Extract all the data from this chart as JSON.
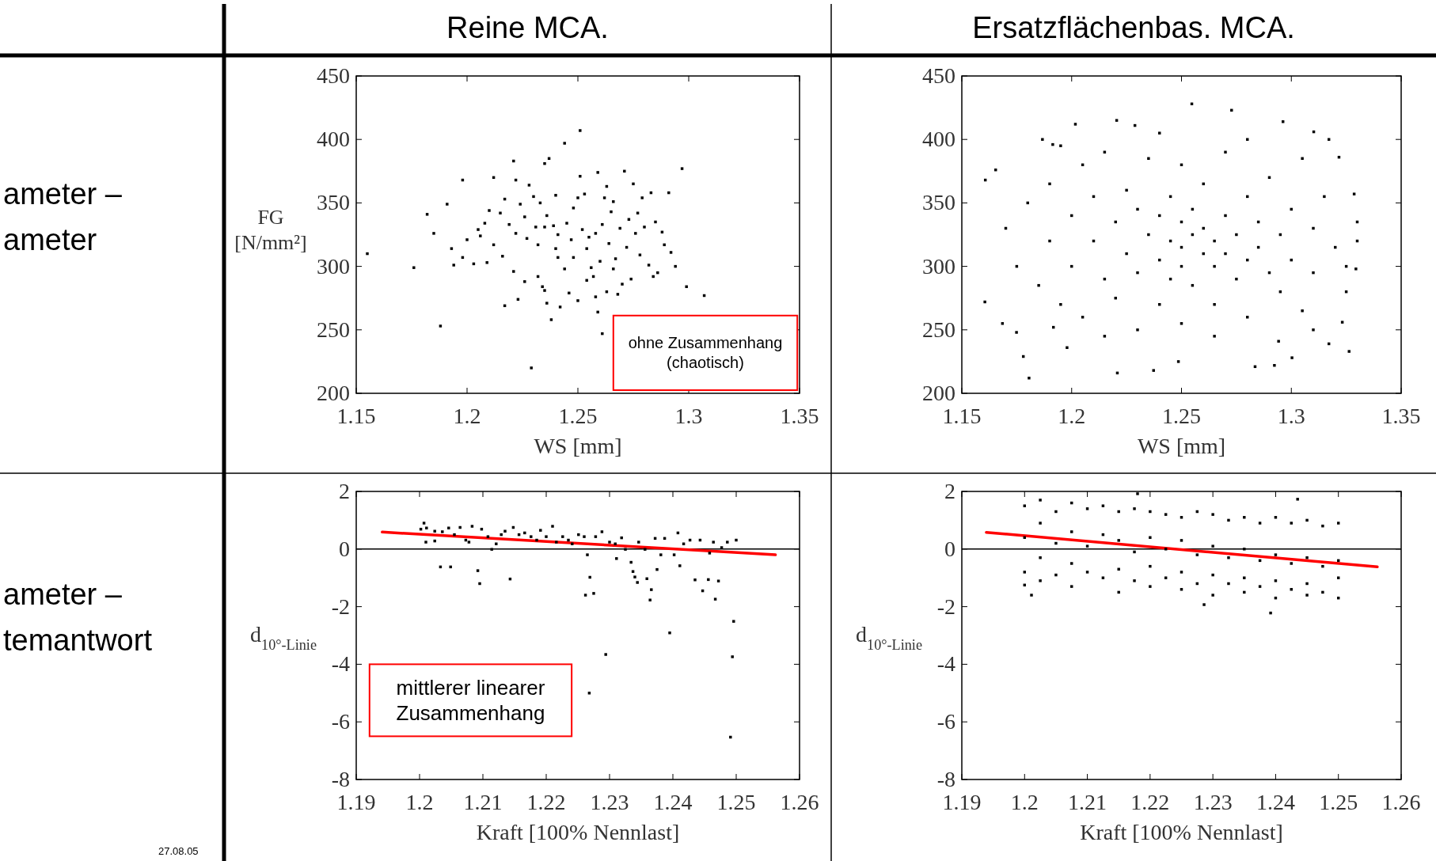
{
  "chart_data": [
    {
      "type": "scatter",
      "title": "Reine MCA.",
      "xlabel": "WS [mm]",
      "ylabel": "FG [N/mm²]",
      "xlim": [
        1.15,
        1.35
      ],
      "xticks": [
        1.15,
        1.2,
        1.25,
        1.3,
        1.35
      ],
      "ylim": [
        200,
        450
      ],
      "yticks": [
        200,
        250,
        300,
        350,
        400,
        450
      ],
      "annotations": [
        "ohne Zusammenhang\n(chaotisch)",
        "ameter –\nameter"
      ],
      "series": [
        {
          "color": "#000000",
          "marker": "square",
          "x": [
            1.155,
            1.176,
            1.182,
            1.185,
            1.188,
            1.191,
            1.193,
            1.194,
            1.198,
            1.198,
            1.2,
            1.203,
            1.205,
            1.206,
            1.208,
            1.209,
            1.21,
            1.212,
            1.212,
            1.215,
            1.216,
            1.217,
            1.217,
            1.219,
            1.221,
            1.221,
            1.222,
            1.222,
            1.223,
            1.224,
            1.226,
            1.226,
            1.227,
            1.228,
            1.229,
            1.23,
            1.231,
            1.232,
            1.232,
            1.233,
            1.234,
            1.235,
            1.235,
            1.235,
            1.236,
            1.236,
            1.237,
            1.238,
            1.239,
            1.24,
            1.24,
            1.241,
            1.241,
            1.242,
            1.244,
            1.244,
            1.245,
            1.246,
            1.247,
            1.248,
            1.248,
            1.25,
            1.25,
            1.251,
            1.251,
            1.252,
            1.253,
            1.254,
            1.254,
            1.255,
            1.256,
            1.257,
            1.258,
            1.258,
            1.259,
            1.259,
            1.26,
            1.261,
            1.261,
            1.262,
            1.263,
            1.263,
            1.264,
            1.265,
            1.266,
            1.266,
            1.267,
            1.268,
            1.269,
            1.27,
            1.271,
            1.272,
            1.273,
            1.274,
            1.275,
            1.276,
            1.277,
            1.278,
            1.279,
            1.28,
            1.282,
            1.283,
            1.284,
            1.285,
            1.286,
            1.288,
            1.289,
            1.291,
            1.292,
            1.294,
            1.297,
            1.299,
            1.307
          ],
          "values": [
            310,
            299,
            341,
            326,
            253,
            349,
            314,
            301,
            307,
            368,
            321,
            302,
            329,
            324,
            334,
            303,
            344,
            370,
            317,
            342,
            308,
            269,
            353,
            333,
            383,
            296,
            368,
            326,
            274,
            349,
            288,
            339,
            322,
            364,
            220,
            355,
            331,
            317,
            292,
            350,
            284,
            331,
            381,
            281,
            340,
            271,
            385,
            258,
            332,
            314,
            356,
            307,
            325,
            268,
            298,
            397,
            334,
            279,
            321,
            307,
            346,
            273,
            354,
            371,
            407,
            329,
            357,
            314,
            289,
            323,
            299,
            292,
            276,
            326,
            374,
            264,
            304,
            247,
            333,
            354,
            363,
            280,
            318,
            343,
            298,
            351,
            306,
            278,
            330,
            286,
            375,
            315,
            337,
            290,
            365,
            326,
            342,
            309,
            354,
            331,
            301,
            358,
            292,
            335,
            295,
            327,
            317,
            358,
            311,
            300,
            377,
            284,
            277
          ]
        }
      ]
    },
    {
      "type": "scatter",
      "title": "Ersatzflächenbas. MCA.",
      "xlabel": "WS [mm]",
      "xlim": [
        1.15,
        1.35
      ],
      "xticks": [
        1.15,
        1.2,
        1.25,
        1.3,
        1.35
      ],
      "ylim": [
        200,
        450
      ],
      "yticks": [
        200,
        250,
        300,
        350,
        400,
        450
      ],
      "series": [
        {
          "color": "#000000",
          "marker": "square",
          "x": [
            1.2547,
            1.2728,
            1.2205,
            1.2017,
            1.2288,
            1.2962,
            1.3102,
            1.1867,
            1.1914,
            1.1654,
            1.1607,
            1.1605,
            1.1685,
            1.1749,
            1.178,
            1.1806,
            1.2208,
            1.2373,
            1.2486,
            1.2835,
            1.2923,
            1.3003,
            1.3171,
            1.3263,
            1.3232,
            1.3217,
            1.3171,
            1.3286,
            1.3294,
            1.2942,
            1.1979,
            1.1917,
            1.17,
            1.175,
            1.18,
            1.185,
            1.19,
            1.19,
            1.195,
            1.2,
            1.2,
            1.205,
            1.205,
            1.21,
            1.21,
            1.215,
            1.215,
            1.22,
            1.22,
            1.225,
            1.225,
            1.23,
            1.23,
            1.23,
            1.235,
            1.235,
            1.24,
            1.24,
            1.24,
            1.245,
            1.245,
            1.245,
            1.25,
            1.25,
            1.25,
            1.25,
            1.25,
            1.255,
            1.255,
            1.255,
            1.26,
            1.26,
            1.26,
            1.265,
            1.265,
            1.265,
            1.27,
            1.27,
            1.27,
            1.275,
            1.275,
            1.28,
            1.28,
            1.28,
            1.285,
            1.285,
            1.29,
            1.29,
            1.295,
            1.295,
            1.3,
            1.3,
            1.305,
            1.305,
            1.31,
            1.31,
            1.315,
            1.32,
            1.325,
            1.33,
            1.325,
            1.33,
            1.265,
            1.215,
            1.24,
            1.28,
            1.195,
            1.31
          ],
          "values": [
            428,
            423,
            415,
            412,
            411,
            414,
            406,
            400,
            396,
            376,
            368,
            272,
            255,
            248,
            229,
            212,
            216,
            218,
            225,
            221,
            222,
            228,
            239,
            233,
            256,
            386,
            400,
            357,
            298,
            241,
            236,
            252,
            330,
            300,
            350,
            285,
            320,
            365,
            270,
            340,
            300,
            380,
            260,
            320,
            355,
            290,
            390,
            335,
            275,
            310,
            360,
            295,
            345,
            250,
            325,
            385,
            305,
            340,
            270,
            320,
            355,
            290,
            315,
            335,
            300,
            380,
            255,
            325,
            345,
            285,
            310,
            330,
            365,
            300,
            320,
            270,
            340,
            310,
            390,
            325,
            290,
            355,
            305,
            260,
            335,
            315,
            295,
            370,
            325,
            280,
            345,
            305,
            385,
            265,
            330,
            295,
            355,
            315,
            280,
            335,
            300,
            320,
            245,
            245,
            405,
            400,
            395,
            250
          ]
        }
      ]
    },
    {
      "type": "scatter",
      "xlabel": "Kraft [100% Nennlast]",
      "ylabel": "d$_{10°-Linie}$",
      "xlim": [
        1.19,
        1.26
      ],
      "xticks": [
        1.19,
        1.2,
        1.21,
        1.22,
        1.23,
        1.24,
        1.25,
        1.26
      ],
      "ylim": [
        -8,
        2
      ],
      "yticks": [
        -8,
        -6,
        -4,
        -2,
        0,
        2
      ],
      "annotations": [
        "mittlerer linearer Zusammenhang",
        "ameter –\ntemantwort",
        "27.08.05"
      ],
      "ref_lines": [
        {
          "axis": "y",
          "value": 0,
          "color": "#000000"
        }
      ],
      "series": [
        {
          "color": "#000000",
          "marker": "square",
          "x": [
            1.2007,
            1.2002,
            1.201,
            1.2011,
            1.2024,
            1.2024,
            1.2033,
            1.2036,
            1.2046,
            1.2049,
            1.2055,
            1.2064,
            1.2073,
            1.2078,
            1.2083,
            1.2092,
            1.2095,
            1.2098,
            1.2108,
            1.2114,
            1.2121,
            1.2129,
            1.2135,
            1.2143,
            1.2148,
            1.2157,
            1.2166,
            1.2176,
            1.2185,
            1.2191,
            1.22,
            1.221,
            1.2216,
            1.2226,
            1.2235,
            1.2241,
            1.2251,
            1.226,
            1.2262,
            1.2265,
            1.2269,
            1.2275,
            1.2278,
            1.2288,
            1.2294,
            1.23,
            1.2309,
            1.2311,
            1.2319,
            1.2325,
            1.2334,
            1.2337,
            1.234,
            1.2344,
            1.2346,
            1.2356,
            1.2359,
            1.2364,
            1.2366,
            1.2372,
            1.2375,
            1.2381,
            1.2387,
            1.2395,
            1.2402,
            1.2408,
            1.2411,
            1.2417,
            1.2427,
            1.2435,
            1.2443,
            1.2447,
            1.2456,
            1.2458,
            1.2464,
            1.2467,
            1.2472,
            1.2477,
            1.2486,
            1.2491,
            1.2494,
            1.2496,
            1.25,
            1.2268
          ],
          "values": [
            0.9,
            0.69,
            0.24,
            0.73,
            0.62,
            0.28,
            -0.62,
            0.6,
            0.73,
            -0.62,
            0.5,
            0.75,
            0.31,
            0.24,
            0.79,
            -0.75,
            -1.2,
            0.69,
            0.43,
            -0.01,
            0.18,
            0.5,
            0.62,
            -1.04,
            0.75,
            0.5,
            0.56,
            0.43,
            0.31,
            0.65,
            0.43,
            0.79,
            0.24,
            0.43,
            0.31,
            0.18,
            0.5,
            0.43,
            -1.6,
            -0.2,
            -0.98,
            -1.54,
            0.43,
            0.6,
            -3.66,
            0.24,
            0.18,
            -0.33,
            0.39,
            -0.01,
            -0.46,
            -0.78,
            -0.97,
            -1.16,
            0.24,
            -0.01,
            -1.03,
            -1.77,
            -1.41,
            0.37,
            -0.71,
            -0.2,
            0.37,
            -2.91,
            -0.2,
            0.56,
            -0.58,
            0.18,
            0.31,
            -1.07,
            0.31,
            -1.45,
            -1.06,
            -0.14,
            0.24,
            -1.74,
            -1.11,
            0.05,
            0.24,
            -6.53,
            -3.74,
            -2.51,
            0.31,
            -5.0
          ]
        },
        {
          "type": "line",
          "color": "#ff0000",
          "marker": "none",
          "x": [
            1.1941,
            1.2562
          ],
          "values": [
            0.59,
            -0.2
          ]
        }
      ]
    },
    {
      "type": "scatter",
      "xlabel": "Kraft [100% Nennlast]",
      "ylabel": "d$_{10°-Linie}$",
      "xlim": [
        1.19,
        1.26
      ],
      "xticks": [
        1.19,
        1.2,
        1.21,
        1.22,
        1.23,
        1.24,
        1.25,
        1.26
      ],
      "ylim": [
        -8,
        2
      ],
      "yticks": [
        -8,
        -6,
        -4,
        -2,
        0,
        2
      ],
      "ref_lines": [
        {
          "axis": "y",
          "value": 0,
          "color": "#000000"
        }
      ],
      "series": [
        {
          "color": "#000000",
          "marker": "square",
          "x": [
            1.2,
            1.2,
            1.2,
            1.2,
            1.2025,
            1.2025,
            1.2025,
            1.2025,
            1.205,
            1.205,
            1.205,
            1.2075,
            1.2075,
            1.2075,
            1.2075,
            1.21,
            1.21,
            1.21,
            1.2125,
            1.2125,
            1.2125,
            1.215,
            1.215,
            1.215,
            1.215,
            1.2175,
            1.2175,
            1.2175,
            1.22,
            1.22,
            1.22,
            1.22,
            1.2225,
            1.2225,
            1.2225,
            1.225,
            1.225,
            1.225,
            1.225,
            1.2275,
            1.2275,
            1.2275,
            1.23,
            1.23,
            1.23,
            1.23,
            1.2325,
            1.2325,
            1.2325,
            1.235,
            1.235,
            1.235,
            1.235,
            1.2375,
            1.2375,
            1.2375,
            1.24,
            1.24,
            1.24,
            1.24,
            1.2425,
            1.2425,
            1.2425,
            1.245,
            1.245,
            1.245,
            1.245,
            1.2475,
            1.2475,
            1.2475,
            1.25,
            1.25,
            1.25,
            1.25,
            1.218,
            1.2011,
            1.2392,
            1.2435,
            1.2286
          ],
          "values": [
            1.5,
            0.4,
            -0.8,
            -1.25,
            1.7,
            0.9,
            -0.3,
            -1.1,
            1.3,
            0.2,
            -0.9,
            1.6,
            0.6,
            -0.5,
            -1.3,
            1.4,
            0.1,
            -0.8,
            1.5,
            0.5,
            -1.0,
            1.3,
            0.3,
            -0.7,
            -1.5,
            1.4,
            -0.1,
            -1.1,
            1.3,
            0.4,
            -0.6,
            -1.3,
            1.2,
            0.0,
            -1.0,
            1.1,
            0.3,
            -0.8,
            -1.4,
            1.3,
            -0.2,
            -1.2,
            1.2,
            0.1,
            -0.9,
            -1.6,
            1.0,
            -0.3,
            -1.2,
            1.1,
            0.0,
            -1.0,
            -1.5,
            0.9,
            -0.4,
            -1.3,
            1.1,
            -0.2,
            -1.1,
            -1.7,
            0.9,
            -0.5,
            -1.4,
            1.0,
            -0.3,
            -1.2,
            -1.6,
            0.8,
            -0.6,
            -1.5,
            0.9,
            -0.4,
            -1.0,
            -1.7,
            1.92,
            -1.6,
            -2.22,
            1.73,
            -1.93
          ]
        },
        {
          "type": "line",
          "color": "#ff0000",
          "marker": "none",
          "x": [
            1.1939,
            1.2562
          ],
          "values": [
            0.58,
            -0.62
          ]
        }
      ]
    }
  ]
}
